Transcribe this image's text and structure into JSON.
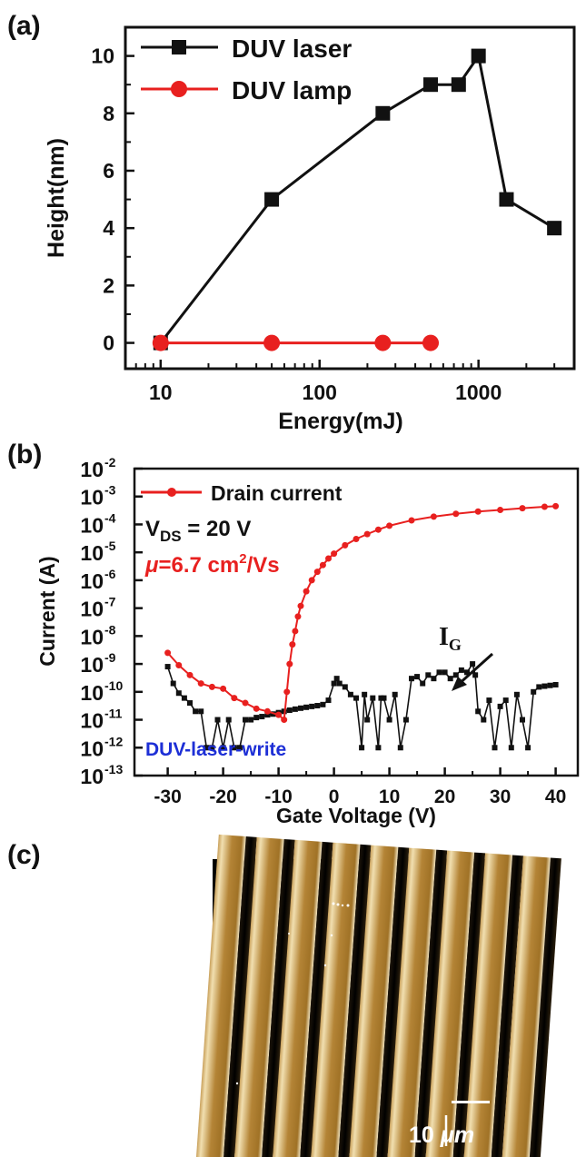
{
  "panels": {
    "a_label": "(a)",
    "b_label": "(b)",
    "c_label": "(c)"
  },
  "chart_data": [
    {
      "type": "line",
      "panel": "(a)",
      "xlabel": "Energy(mJ)",
      "ylabel": "Height(nm)",
      "x_scale": "log",
      "xlim": [
        6,
        4000
      ],
      "ylim": [
        -0.9,
        11
      ],
      "x_ticks": [
        10,
        100,
        1000
      ],
      "x_tick_labels": [
        "10",
        "100",
        "1000"
      ],
      "y_ticks": [
        0,
        2,
        4,
        6,
        8,
        10
      ],
      "y_tick_labels": [
        "0",
        "2",
        "4",
        "6",
        "8",
        "10"
      ],
      "legend_position": "top-left",
      "series": [
        {
          "name": "DUV laser",
          "color": "#111111",
          "marker": "square",
          "x": [
            10,
            50,
            250,
            500,
            750,
            1000,
            1500,
            3000
          ],
          "y": [
            0,
            5,
            8,
            9,
            9,
            10,
            5,
            4
          ]
        },
        {
          "name": "DUV lamp",
          "color": "#e8201f",
          "marker": "circle",
          "x": [
            10,
            50,
            250,
            500
          ],
          "y": [
            0,
            0,
            0,
            0
          ]
        }
      ]
    },
    {
      "type": "scatter",
      "panel": "(b)",
      "xlabel": "Gate Voltage (V)",
      "ylabel": "Current (A)",
      "y_scale": "log",
      "xlim": [
        -36,
        44
      ],
      "ylim": [
        1e-13,
        0.01
      ],
      "x_ticks": [
        -30,
        -20,
        -10,
        0,
        10,
        20,
        30,
        40
      ],
      "x_tick_labels": [
        "-30",
        "-20",
        "-10",
        "0",
        "10",
        "20",
        "30",
        "40"
      ],
      "y_tick_base": "10",
      "y_tick_exponents": [
        "-2",
        "-3",
        "-4",
        "-5",
        "-6",
        "-7",
        "-8",
        "-9",
        "-10",
        "-11",
        "-12",
        "-13"
      ],
      "legend_position": "top-left",
      "annotations": {
        "vds_main": "V",
        "vds_sub": "DS",
        "vds_rest": " = 20 V",
        "mu_symbol": "μ",
        "mu_text": "=6.7 cm",
        "mu_sup": "2",
        "mu_unit": "/Vs",
        "ig_main": "I",
        "ig_sub": "G",
        "method": "DUV-laser-write"
      },
      "series": [
        {
          "name": "Drain current",
          "color": "#e8201f",
          "marker": "circle",
          "x": [
            -30,
            -28,
            -26,
            -24,
            -22,
            -20,
            -18,
            -16,
            -14,
            -12,
            -10,
            -9,
            -8.5,
            -8,
            -7.5,
            -7,
            -6.5,
            -6,
            -5,
            -4,
            -3,
            -2,
            -1,
            0,
            2,
            4,
            6,
            8,
            10,
            14,
            18,
            22,
            26,
            30,
            34,
            38,
            40
          ],
          "y": [
            2.5e-09,
            9e-10,
            4e-10,
            2e-10,
            1.5e-10,
            1.3e-10,
            6e-11,
            4e-11,
            2.5e-11,
            2e-11,
            1.5e-11,
            1e-11,
            1e-10,
            1e-09,
            5e-09,
            1.5e-08,
            5e-08,
            1.2e-07,
            4e-07,
            1e-06,
            2e-06,
            3.5e-06,
            6e-06,
            9e-06,
            1.8e-05,
            3e-05,
            4.5e-05,
            6.5e-05,
            9e-05,
            0.00014,
            0.00019,
            0.00024,
            0.00029,
            0.00033,
            0.00038,
            0.00043,
            0.00045
          ]
        },
        {
          "name": "I_G",
          "color": "#111111",
          "marker": "square",
          "x": [
            -30,
            -29,
            -28,
            -27,
            -26,
            -25,
            -24,
            -23,
            -22,
            -21,
            -20,
            -19,
            -18,
            -17,
            -16,
            -15,
            -14,
            -13,
            -12,
            -11,
            -10,
            -9,
            -8,
            -7,
            -6,
            -5,
            -4,
            -3,
            -2,
            -1,
            0,
            0.5,
            1,
            2,
            3,
            4,
            5,
            5.5,
            6,
            7,
            8,
            8.5,
            9,
            10,
            11,
            12,
            13,
            14,
            15,
            16,
            17,
            18,
            19,
            20,
            21,
            22,
            23,
            24,
            25,
            25.5,
            26,
            27,
            28,
            29,
            30,
            31,
            32,
            33,
            34,
            35,
            36,
            37,
            38,
            39,
            40
          ],
          "y": [
            8e-10,
            2e-10,
            9e-11,
            6e-11,
            4e-11,
            2e-11,
            2e-11,
            1e-12,
            1e-12,
            1e-11,
            1e-12,
            1e-11,
            1e-12,
            1e-12,
            1e-11,
            1e-11,
            1.2e-11,
            1.3e-11,
            1.5e-11,
            1.6e-11,
            1.8e-11,
            2e-11,
            2.2e-11,
            2.4e-11,
            2.6e-11,
            2.8e-11,
            3e-11,
            3.2e-11,
            3.5e-11,
            5e-11,
            2e-10,
            3e-10,
            2e-10,
            1.5e-10,
            8e-11,
            6e-11,
            1e-12,
            8e-11,
            1e-11,
            6e-11,
            1e-12,
            6e-11,
            6e-11,
            1e-11,
            8e-11,
            1e-12,
            1e-11,
            3e-10,
            3.5e-10,
            2e-10,
            4e-10,
            3e-10,
            5e-10,
            5e-10,
            3e-10,
            4e-10,
            6e-10,
            5e-10,
            1e-09,
            4e-10,
            2e-11,
            1e-11,
            5e-11,
            1e-12,
            3e-11,
            5e-11,
            1e-12,
            8e-11,
            1e-11,
            1e-12,
            1e-10,
            1.5e-10,
            1.6e-10,
            1.7e-10,
            1.8e-10
          ]
        }
      ]
    }
  ],
  "image_c": {
    "scale_bar_value": "10",
    "scale_bar_unit": "μm"
  }
}
